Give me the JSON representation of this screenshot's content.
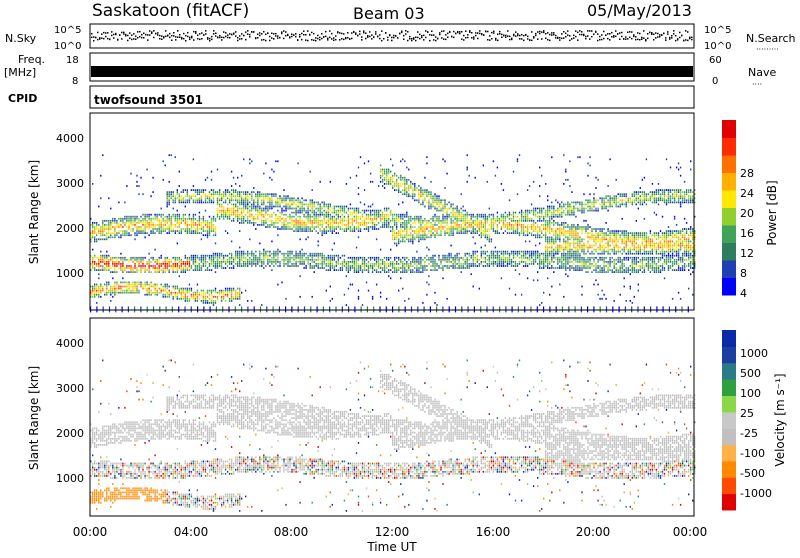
{
  "header": {
    "station": "Saskatoon (fitACF)",
    "beam": "Beam 03",
    "date": "05/May/2013"
  },
  "colors": {
    "power_scale": [
      "#0000ff",
      "#1f3fb4",
      "#2e7d5f",
      "#3fa35a",
      "#8fcf2f",
      "#ffe800",
      "#ffb000",
      "#ff7000",
      "#ff2a00",
      "#e00000"
    ],
    "velocity_scale": [
      "#e00000",
      "#ff4a00",
      "#ff8a00",
      "#ffb24a",
      "#c0c0c0",
      "#c8c8c8",
      "#8ad84a",
      "#2ea042",
      "#2a7a8a",
      "#1b3f9e",
      "#0a2aa8"
    ],
    "ground_scatter": "#bdbdbd"
  },
  "labels": {
    "nsky": "N.Sky",
    "nsearch": "N.Search",
    "nsearch_dots": "·········",
    "freq": "Freq.",
    "freq_unit": "[MHz]",
    "nave": "Nave",
    "nave_dots": "····",
    "cpid": "CPID",
    "cpid_value": "twofsound 3501",
    "time_axis": "Time UT"
  },
  "chart_data": [
    {
      "type": "scatter",
      "name": "noise",
      "ylabel_left": "N.Sky",
      "ylabel_right": "N.Search",
      "yticks_left": [
        "10^5",
        "10^0"
      ],
      "yticks_right": [
        "10^5",
        "10^0"
      ]
    },
    {
      "type": "bar",
      "name": "frequency-nave",
      "ylabel_left": "Freq. [MHz]",
      "ylabel_right": "Nave",
      "yticks_left": [
        "18",
        "8"
      ],
      "yticks_right": [
        "60",
        "0"
      ]
    },
    {
      "type": "heatmap",
      "name": "power",
      "ylabel": "Slant Range [km]",
      "yticks": [
        "4000",
        "3000",
        "2000",
        "1000"
      ],
      "ylim": [
        180,
        4500
      ],
      "colorbar_label": "Power [dB]",
      "colorbar_ticks": [
        "28",
        "24",
        "20",
        "16",
        "12",
        "8",
        "4"
      ],
      "range": [
        0,
        30
      ]
    },
    {
      "type": "heatmap",
      "name": "velocity",
      "ylabel": "Slant Range [km]",
      "yticks": [
        "4000",
        "3000",
        "2000",
        "1000"
      ],
      "ylim": [
        180,
        4500
      ],
      "colorbar_label": "Velocity [m s⁻¹]",
      "colorbar_ticks": [
        "1000",
        "500",
        "100",
        "25",
        "-25",
        "-100",
        "-500",
        "-1000"
      ]
    }
  ],
  "xaxis": {
    "ticks": [
      "00:00",
      "04:00",
      "08:00",
      "12:00",
      "16:00",
      "20:00",
      "00:00"
    ],
    "xlim": [
      0,
      24
    ]
  }
}
